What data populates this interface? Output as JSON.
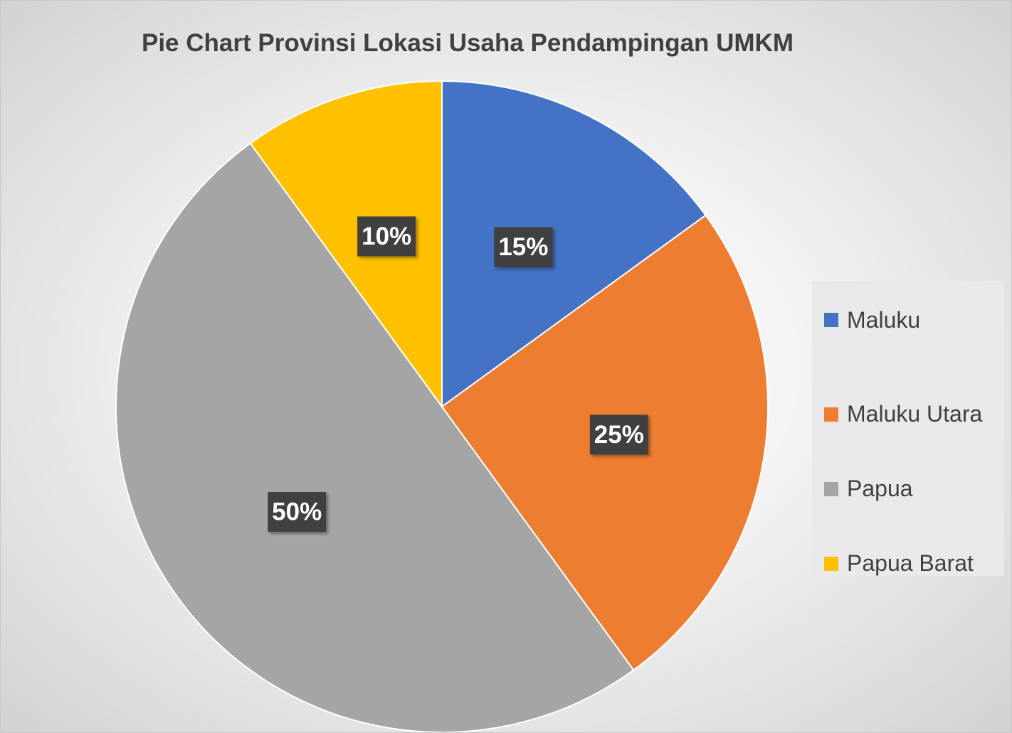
{
  "chart_data": {
    "type": "pie",
    "title": "Pie Chart Provinsi Lokasi Usaha Pendampingan UMKM",
    "categories": [
      "Maluku",
      "Maluku Utara",
      "Papua",
      "Papua Barat"
    ],
    "values": [
      15,
      25,
      50,
      10
    ],
    "data_labels": [
      "15%",
      "25%",
      "50%",
      "10%"
    ],
    "colors": [
      "#4472C4",
      "#ED7D31",
      "#A5A5A5",
      "#FFC000"
    ],
    "start_angle": "top, clockwise",
    "legend": {
      "position": "right",
      "entries": [
        "Maluku",
        "Maluku Utara",
        "Papua",
        "Papua Barat"
      ]
    }
  }
}
